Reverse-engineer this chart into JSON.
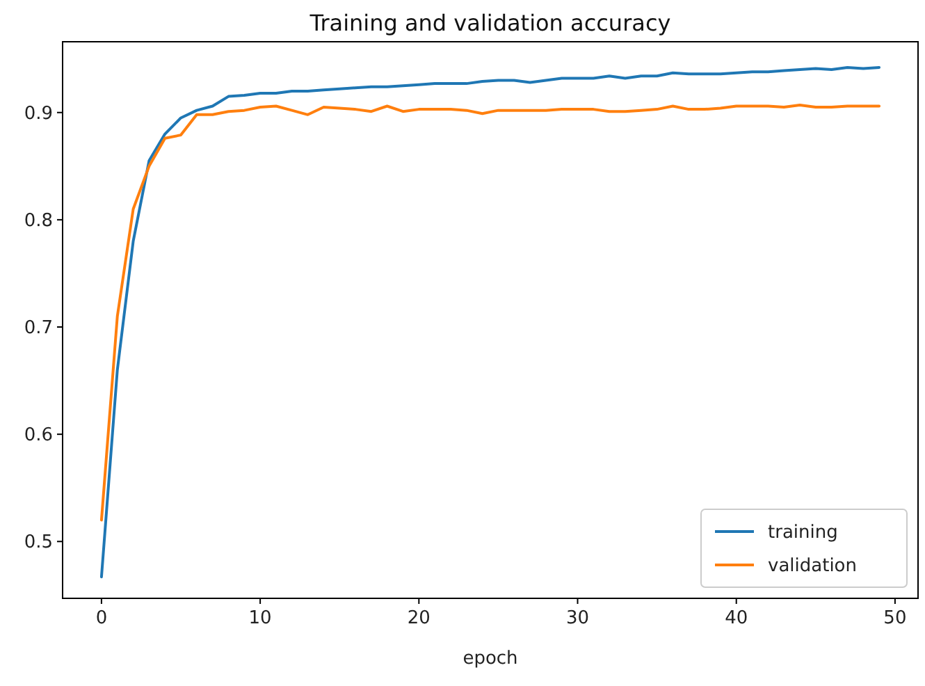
{
  "chart_data": {
    "type": "line",
    "title": "Training and validation accuracy",
    "xlabel": "epoch",
    "x": [
      0,
      1,
      2,
      3,
      4,
      5,
      6,
      7,
      8,
      9,
      10,
      11,
      12,
      13,
      14,
      15,
      16,
      17,
      18,
      19,
      20,
      21,
      22,
      23,
      24,
      25,
      26,
      27,
      28,
      29,
      30,
      31,
      32,
      33,
      34,
      35,
      36,
      37,
      38,
      39,
      40,
      41,
      42,
      43,
      44,
      45,
      46,
      47,
      48,
      49
    ],
    "xlim": [
      -2.45,
      51.45
    ],
    "xticks": [
      0,
      10,
      20,
      30,
      40,
      50
    ],
    "ylim": [
      0.447,
      0.966
    ],
    "yticks": [
      {
        "value": 0.5,
        "label": "0.5"
      },
      {
        "value": 0.6,
        "label": "0.6"
      },
      {
        "value": 0.7,
        "label": "0.7"
      },
      {
        "value": 0.8,
        "label": "0.8"
      },
      {
        "value": 0.9,
        "label": "0.9"
      }
    ],
    "series": [
      {
        "name": "training",
        "color": "#1f77b4",
        "values": [
          0.467,
          0.66,
          0.78,
          0.855,
          0.88,
          0.895,
          0.902,
          0.906,
          0.915,
          0.916,
          0.918,
          0.918,
          0.92,
          0.92,
          0.921,
          0.922,
          0.923,
          0.924,
          0.924,
          0.925,
          0.926,
          0.927,
          0.927,
          0.927,
          0.929,
          0.93,
          0.93,
          0.928,
          0.93,
          0.932,
          0.932,
          0.932,
          0.934,
          0.932,
          0.934,
          0.934,
          0.937,
          0.936,
          0.936,
          0.936,
          0.937,
          0.938,
          0.938,
          0.939,
          0.94,
          0.941,
          0.94,
          0.942,
          0.941,
          0.942
        ]
      },
      {
        "name": "validation",
        "color": "#ff7f0e",
        "values": [
          0.52,
          0.71,
          0.81,
          0.85,
          0.876,
          0.879,
          0.898,
          0.898,
          0.901,
          0.902,
          0.905,
          0.906,
          0.902,
          0.898,
          0.905,
          0.904,
          0.903,
          0.901,
          0.906,
          0.901,
          0.903,
          0.903,
          0.903,
          0.902,
          0.899,
          0.902,
          0.902,
          0.902,
          0.902,
          0.903,
          0.903,
          0.903,
          0.901,
          0.901,
          0.902,
          0.903,
          0.906,
          0.903,
          0.903,
          0.904,
          0.906,
          0.906,
          0.906,
          0.905,
          0.907,
          0.905,
          0.905,
          0.906,
          0.906,
          0.906
        ]
      }
    ],
    "legend": "bottom right",
    "grid": false,
    "marker": "none",
    "line_style": "solid"
  }
}
